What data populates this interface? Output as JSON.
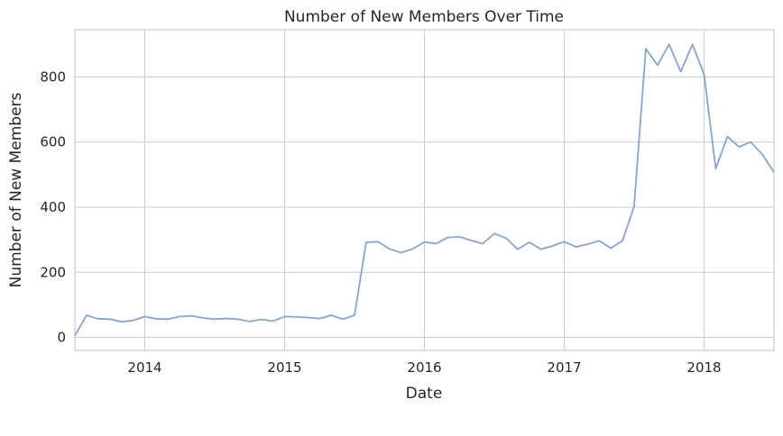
{
  "chart_data": {
    "type": "line",
    "title": "Number of New Members Over Time",
    "xlabel": "Date",
    "ylabel": "Number of New Members",
    "x_ticks": [
      "2014",
      "2015",
      "2016",
      "2017",
      "2018"
    ],
    "y_ticks": [
      0,
      200,
      400,
      600,
      800
    ],
    "ylim": [
      -40,
      945
    ],
    "xlim": [
      "2013-07",
      "2018-07"
    ],
    "grid": true,
    "line_color": "#8aa3cb",
    "x": [
      "2013-07",
      "2013-08",
      "2013-09",
      "2013-10",
      "2013-11",
      "2013-12",
      "2014-01",
      "2014-02",
      "2014-03",
      "2014-04",
      "2014-05",
      "2014-06",
      "2014-07",
      "2014-08",
      "2014-09",
      "2014-10",
      "2014-11",
      "2014-12",
      "2015-01",
      "2015-02",
      "2015-03",
      "2015-04",
      "2015-05",
      "2015-06",
      "2015-07",
      "2015-08",
      "2015-09",
      "2015-10",
      "2015-11",
      "2015-12",
      "2016-01",
      "2016-02",
      "2016-03",
      "2016-04",
      "2016-05",
      "2016-06",
      "2016-07",
      "2016-08",
      "2016-09",
      "2016-10",
      "2016-11",
      "2016-12",
      "2017-01",
      "2017-02",
      "2017-03",
      "2017-04",
      "2017-05",
      "2017-06",
      "2017-07",
      "2017-08",
      "2017-09",
      "2017-10",
      "2017-11",
      "2017-12",
      "2018-01",
      "2018-02",
      "2018-03",
      "2018-04",
      "2018-05",
      "2018-06",
      "2018-07"
    ],
    "series": [
      {
        "values": [
          5,
          68,
          57,
          56,
          48,
          52,
          64,
          57,
          56,
          64,
          66,
          60,
          56,
          58,
          56,
          49,
          55,
          50,
          64,
          63,
          61,
          58,
          68,
          56,
          68,
          292,
          294,
          272,
          260,
          272,
          293,
          288,
          307,
          309,
          298,
          288,
          319,
          305,
          271,
          292,
          271,
          281,
          294,
          278,
          286,
          297,
          274,
          297,
          403,
          887,
          836,
          900,
          816,
          900,
          808,
          518,
          617,
          585,
          600,
          562,
          507
        ]
      }
    ]
  }
}
